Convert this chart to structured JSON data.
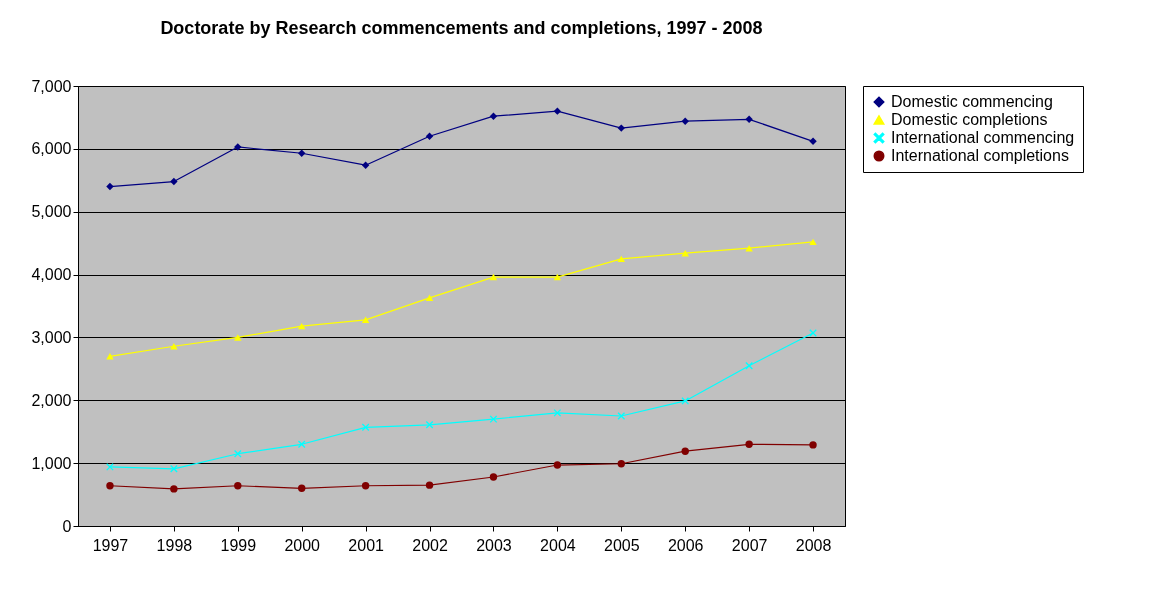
{
  "chart_data": {
    "type": "line",
    "title": "Doctorate by Research commencements and completions, 1997 - 2008",
    "categories": [
      "1997",
      "1998",
      "1999",
      "2000",
      "2001",
      "2002",
      "2003",
      "2004",
      "2005",
      "2006",
      "2007",
      "2008"
    ],
    "series": [
      {
        "name": "Domestic commencing",
        "color": "#000080",
        "marker": "diamond",
        "values": [
          5400,
          5480,
          6030,
          5930,
          5740,
          6200,
          6520,
          6600,
          6330,
          6440,
          6470,
          6120
        ]
      },
      {
        "name": "Domestic completions",
        "color": "#ffff00",
        "marker": "triangle",
        "values": [
          2700,
          2860,
          3000,
          3180,
          3280,
          3630,
          3960,
          3960,
          4250,
          4340,
          4420,
          4520
        ]
      },
      {
        "name": "International commencing",
        "color": "#00ffff",
        "marker": "cross",
        "values": [
          940,
          910,
          1150,
          1300,
          1570,
          1610,
          1700,
          1800,
          1750,
          1990,
          2550,
          3070
        ]
      },
      {
        "name": "International completions",
        "color": "#800000",
        "marker": "circle",
        "values": [
          640,
          590,
          640,
          600,
          640,
          650,
          780,
          970,
          990,
          1190,
          1300,
          1290
        ]
      }
    ],
    "ylim": [
      0,
      7000
    ],
    "yticks": [
      {
        "value": 0,
        "label": "0"
      },
      {
        "value": 1000,
        "label": "1,000"
      },
      {
        "value": 2000,
        "label": "2,000"
      },
      {
        "value": 3000,
        "label": "3,000"
      },
      {
        "value": 4000,
        "label": "4,000"
      },
      {
        "value": 5000,
        "label": "5,000"
      },
      {
        "value": 6000,
        "label": "6,000"
      },
      {
        "value": 7000,
        "label": "7,000"
      }
    ],
    "grid": "y",
    "legend": "right"
  }
}
